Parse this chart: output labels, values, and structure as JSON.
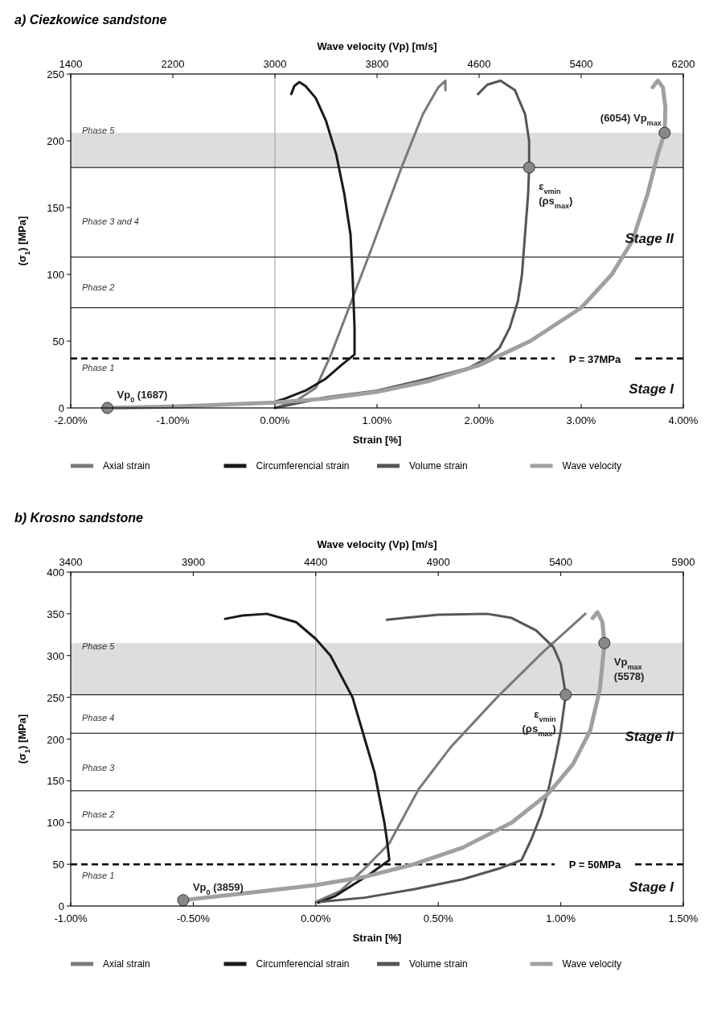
{
  "chart_data": [
    {
      "type": "line",
      "title": "a) Ciezkowice sandstone",
      "xlabel": "Strain [%]",
      "x2label": "Wave velocity (Vp) [m/s]",
      "ylabel": "(σ$_{1}$) [MPa]",
      "xlim": [
        -2,
        4
      ],
      "xticks": [
        {
          "value": -2,
          "label": "-2.00%"
        },
        {
          "value": -1,
          "label": "-1.00%"
        },
        {
          "value": 0,
          "label": "0.00%"
        },
        {
          "value": 1,
          "label": "1.00%"
        },
        {
          "value": 2,
          "label": "2.00%"
        },
        {
          "value": 3,
          "label": "3.00%"
        },
        {
          "value": 4,
          "label": "4.00%"
        }
      ],
      "x2lim": [
        1400,
        6200
      ],
      "x2ticks": [
        1400,
        2200,
        3000,
        3800,
        4600,
        5400,
        6200
      ],
      "ylim": [
        0,
        250
      ],
      "yticks": [
        0,
        50,
        100,
        150,
        200,
        250
      ],
      "legend": "bottom",
      "series": [
        {
          "name": "Axial strain",
          "color": "#7a7a7a",
          "x": [
            0,
            0.2,
            0.4,
            0.55,
            0.75,
            0.95,
            1.24,
            1.45,
            1.6,
            1.67,
            1.67
          ],
          "values": [
            0,
            5,
            15,
            40,
            80,
            120,
            180,
            220,
            240,
            245,
            238
          ]
        },
        {
          "name": "Circumferencial strain",
          "color": "#1a1a1a",
          "x": [
            -0.03,
            0.1,
            0.3,
            0.5,
            0.65,
            0.78,
            0.78,
            0.77,
            0.76,
            0.74,
            0.68,
            0.6,
            0.5,
            0.4,
            0.3,
            0.24,
            0.19,
            0.16
          ],
          "values": [
            4,
            7,
            13,
            22,
            32,
            40,
            60,
            80,
            100,
            130,
            160,
            190,
            215,
            232,
            241,
            244,
            241,
            235
          ]
        },
        {
          "name": "Volume strain",
          "color": "#555555",
          "x": [
            0,
            0.5,
            1,
            1.5,
            1.9,
            2.1,
            2.2,
            2.3,
            2.38,
            2.42,
            2.45,
            2.48,
            2.49,
            2.49,
            2.45,
            2.35,
            2.21,
            2.08,
            1.99
          ],
          "values": [
            0,
            8,
            13,
            22,
            30,
            38,
            45,
            60,
            80,
            100,
            130,
            160,
            180,
            200,
            220,
            238,
            245,
            242,
            235
          ]
        },
        {
          "name": "Wave velocity",
          "color": "#a0a0a0",
          "axis": "x2",
          "x": [
            1687,
            2200,
            3000,
            3400,
            3800,
            4200,
            4600,
            5000,
            5400,
            5640,
            5800,
            5920,
            6000,
            6054,
            6060,
            6040,
            6000,
            5960
          ],
          "values": [
            0,
            1,
            4,
            7,
            12,
            20,
            32,
            50,
            75,
            100,
            125,
            160,
            190,
            206,
            225,
            240,
            245,
            240
          ]
        },
        {
          "type": "scatter",
          "color": "#888888",
          "marker": "circle",
          "axis": "x2",
          "x": [
            1687,
            6054
          ],
          "values": [
            0,
            206
          ]
        },
        {
          "type": "scatter",
          "color": "#888888",
          "marker": "circle",
          "x": [
            2.49
          ],
          "values": [
            180
          ]
        }
      ],
      "bands": [
        {
          "axis": "y",
          "from": 180,
          "to": 206,
          "color": "#d4d4d4"
        }
      ],
      "ref_lines": [
        {
          "axis": "x",
          "value": 0,
          "color": "#999999"
        },
        {
          "axis": "y",
          "value": 180,
          "color": "#000000"
        },
        {
          "axis": "y",
          "value": 113,
          "color": "#000000"
        },
        {
          "axis": "y",
          "value": 75,
          "color": "#000000"
        },
        {
          "axis": "y",
          "value": 37,
          "label": "P = 37MPa",
          "color": "#000000",
          "line_style": "dashed"
        }
      ],
      "annotations": [
        "Phase 1",
        "Phase 2",
        "Phase 3 and 4",
        "Phase 5",
        "Vp$_{0}$ (1687)",
        "(6054) Vp$_{max}$",
        "ε$_{vmin}$ (ρs$_{max}$)",
        "Stage I",
        "Stage II"
      ]
    },
    {
      "type": "line",
      "title": "b) Krosno sandstone",
      "xlabel": "Strain [%]",
      "x2label": "Wave velocity (Vp) [m/s]",
      "ylabel": "(σ$_{1}$) [MPa]",
      "xlim": [
        -1,
        1.5
      ],
      "xticks": [
        {
          "value": -1,
          "label": "-1.00%"
        },
        {
          "value": -0.5,
          "label": "-0.50%"
        },
        {
          "value": 0,
          "label": "0.00%"
        },
        {
          "value": 0.5,
          "label": "0.50%"
        },
        {
          "value": 1,
          "label": "1.00%"
        },
        {
          "value": 1.5,
          "label": "1.50%"
        }
      ],
      "x2lim": [
        3400,
        5900
      ],
      "x2ticks": [
        3400,
        3900,
        4400,
        4900,
        5400,
        5900
      ],
      "ylim": [
        0,
        400
      ],
      "yticks": [
        0,
        50,
        100,
        150,
        200,
        250,
        300,
        350,
        400
      ],
      "legend": "bottom",
      "series": [
        {
          "name": "Axial strain",
          "color": "#7a7a7a",
          "x": [
            0,
            0.1,
            0.2,
            0.3,
            0.42,
            0.55,
            0.74,
            0.93,
            1.1
          ],
          "values": [
            5,
            18,
            45,
            75,
            140,
            190,
            250,
            305,
            350
          ]
        },
        {
          "name": "Circumferencial strain",
          "color": "#1a1a1a",
          "x": [
            0.01,
            0.08,
            0.15,
            0.22,
            0.3,
            0.29,
            0.28,
            0.26,
            0.24,
            0.2,
            0.15,
            0.06,
            0,
            -0.08,
            -0.2,
            -0.3,
            -0.37
          ],
          "values": [
            4,
            12,
            25,
            38,
            55,
            80,
            100,
            130,
            160,
            200,
            250,
            300,
            320,
            340,
            350,
            348,
            344
          ]
        },
        {
          "name": "Volume strain",
          "color": "#555555",
          "x": [
            0.02,
            0.2,
            0.4,
            0.6,
            0.75,
            0.84,
            0.88,
            0.92,
            0.95,
            0.98,
            1,
            1.02,
            1,
            0.97,
            0.9,
            0.8,
            0.7,
            0.5,
            0.29
          ],
          "values": [
            5,
            10,
            20,
            32,
            45,
            55,
            80,
            110,
            140,
            180,
            210,
            253,
            290,
            310,
            330,
            345,
            350,
            349,
            343
          ]
        },
        {
          "name": "Wave velocity",
          "color": "#a0a0a0",
          "axis": "x2",
          "x": [
            3859,
            4100,
            4400,
            4600,
            4800,
            5000,
            5200,
            5350,
            5450,
            5520,
            5560,
            5578,
            5570,
            5550,
            5530
          ],
          "values": [
            7,
            15,
            25,
            35,
            50,
            70,
            100,
            135,
            170,
            210,
            260,
            315,
            340,
            352,
            345
          ]
        },
        {
          "type": "scatter",
          "color": "#888888",
          "marker": "circle",
          "axis": "x2",
          "x": [
            3859,
            5578
          ],
          "values": [
            7,
            315
          ]
        },
        {
          "type": "scatter",
          "color": "#888888",
          "marker": "circle",
          "x": [
            1.02
          ],
          "values": [
            253
          ]
        }
      ],
      "bands": [
        {
          "axis": "y",
          "from": 253,
          "to": 315,
          "color": "#d4d4d4"
        }
      ],
      "ref_lines": [
        {
          "axis": "x",
          "value": 0,
          "color": "#999999"
        },
        {
          "axis": "y",
          "value": 253,
          "color": "#000000"
        },
        {
          "axis": "y",
          "value": 207,
          "color": "#000000"
        },
        {
          "axis": "y",
          "value": 138,
          "color": "#000000"
        },
        {
          "axis": "y",
          "value": 91,
          "color": "#000000"
        },
        {
          "axis": "y",
          "value": 50,
          "label": "P = 50MPa",
          "color": "#000000",
          "line_style": "dashed"
        }
      ],
      "annotations": [
        "Phase 1",
        "Phase 2",
        "Phase 3",
        "Phase 4",
        "Phase 5",
        "Vp$_{0}$ (3859)",
        "Vp$_{max}$ (5578)",
        "ε$_{vmin}$ (ρs$_{max}$)",
        "Stage I",
        "Stage II"
      ]
    }
  ]
}
